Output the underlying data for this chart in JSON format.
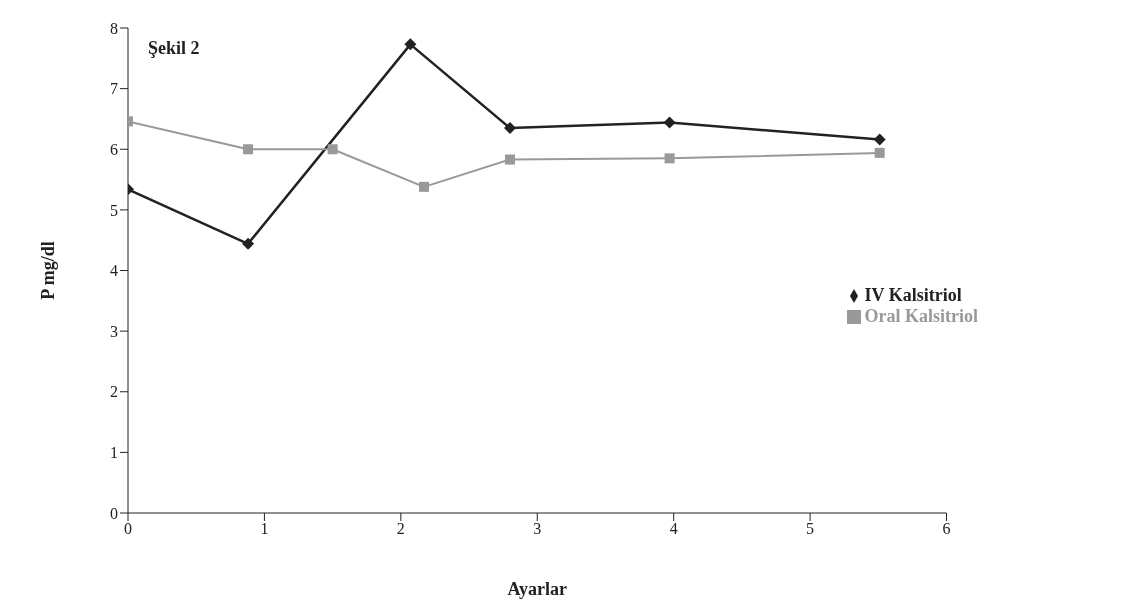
{
  "chart_data": {
    "type": "line",
    "xlabel": "Ayarlar",
    "ylabel": "P mg/dl",
    "annotations": [
      "Şekil 2"
    ],
    "series": [
      {
        "name": "IV Kalsitriol",
        "color": "#222222",
        "marker": "diamond",
        "x": [
          0,
          0.88,
          2.07,
          2.8,
          3.97,
          5.51
        ],
        "values": [
          5.34,
          4.44,
          7.73,
          6.35,
          6.44,
          6.16
        ]
      },
      {
        "name": "Oral Kalsitriol",
        "color": "#999999",
        "marker": "square",
        "x": [
          0,
          0.88,
          1.5,
          2.17,
          2.8,
          3.97,
          5.51
        ],
        "values": [
          6.46,
          6.0,
          6.0,
          5.38,
          5.83,
          5.85,
          5.94
        ]
      }
    ],
    "xlim": [
      0,
      6
    ],
    "xticks": [
      0,
      1,
      2,
      3,
      4,
      5,
      6
    ],
    "ylim": [
      0,
      8
    ],
    "yticks": [
      0,
      1,
      2,
      3,
      4,
      5,
      6,
      7,
      8
    ],
    "grid": false,
    "legend": "right"
  }
}
